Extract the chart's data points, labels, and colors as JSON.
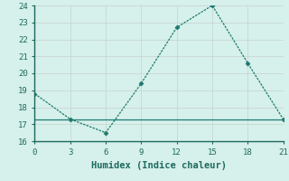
{
  "xlabel": "Humidex (Indice chaleur)",
  "x": [
    0,
    3,
    6,
    9,
    12,
    15,
    18,
    21
  ],
  "y": [
    18.8,
    17.3,
    16.5,
    19.4,
    22.7,
    24.0,
    20.6,
    17.3
  ],
  "hline_y": 17.3,
  "xlim": [
    0,
    21
  ],
  "ylim": [
    16,
    24
  ],
  "xticks": [
    0,
    3,
    6,
    9,
    12,
    15,
    18,
    21
  ],
  "yticks": [
    16,
    17,
    18,
    19,
    20,
    21,
    22,
    23,
    24
  ],
  "line_color": "#1d7a6e",
  "marker": "D",
  "marker_size": 2.5,
  "bg_color": "#d6f0eb",
  "grid_color": "#c8d8d4",
  "hline_color": "#1d7a6e",
  "axis_color": "#1d6a5e",
  "label_fontsize": 7.5,
  "tick_fontsize": 6.5,
  "linewidth": 0.9
}
